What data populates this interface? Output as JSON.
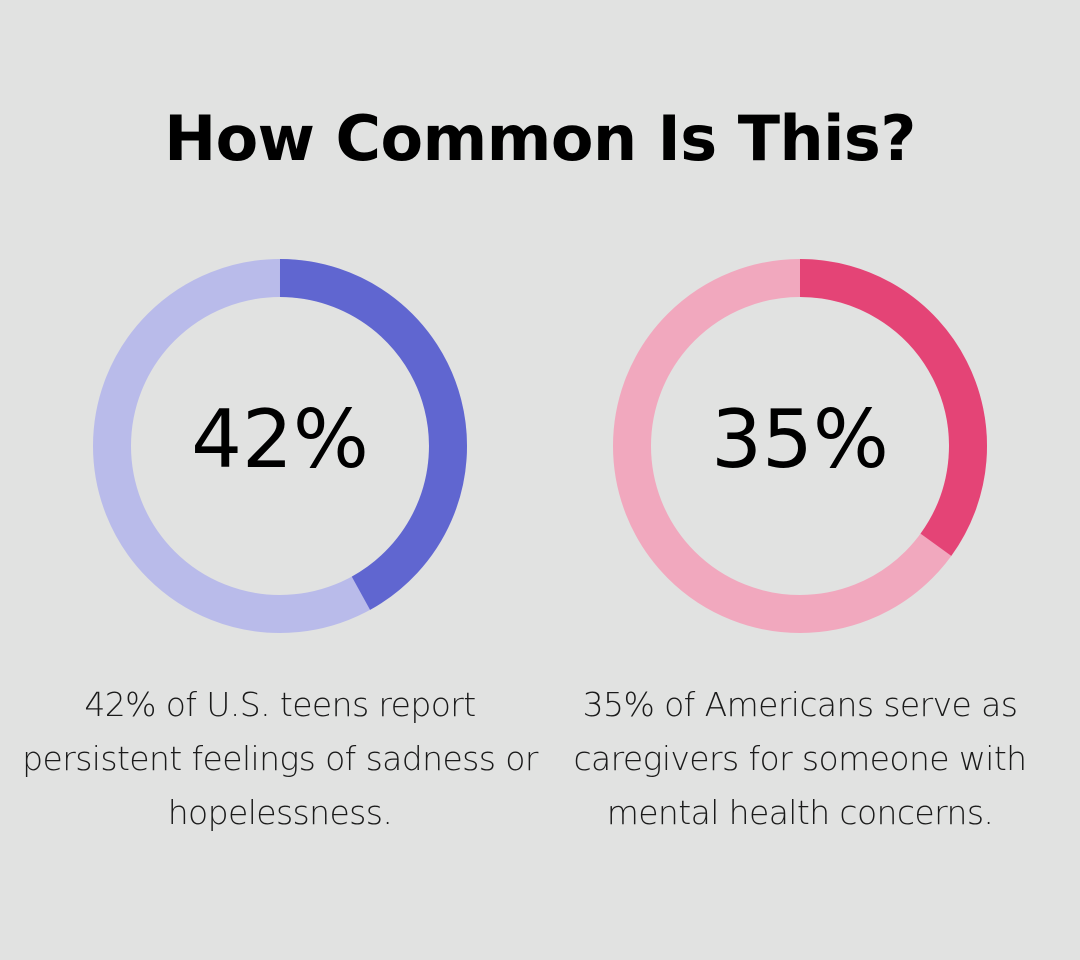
{
  "header": {
    "title": "How Common Is This?"
  },
  "chart_data": [
    {
      "type": "pie",
      "value_label": "42%",
      "values": [
        42,
        58
      ],
      "colors": {
        "filled": "#6066d0",
        "track": "#b9bbea"
      },
      "caption": "42% of U.S. teens report persistent feelings of sadness or hopelessness."
    },
    {
      "type": "pie",
      "value_label": "35%",
      "values": [
        35,
        65
      ],
      "colors": {
        "filled": "#e44476",
        "track": "#f1a8be"
      },
      "caption": "35% of Americans serve as caregivers for someone with mental health concerns."
    }
  ],
  "theme": {
    "background": "#e1e2e1"
  }
}
